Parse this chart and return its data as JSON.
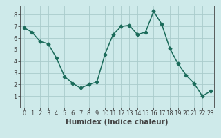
{
  "x": [
    0,
    1,
    2,
    3,
    4,
    5,
    6,
    7,
    8,
    9,
    10,
    11,
    12,
    13,
    14,
    15,
    16,
    17,
    18,
    19,
    20,
    21,
    22,
    23
  ],
  "y": [
    6.9,
    6.5,
    5.7,
    5.5,
    4.3,
    2.7,
    2.1,
    1.7,
    2.0,
    2.2,
    4.6,
    6.3,
    7.0,
    7.1,
    6.3,
    6.5,
    8.3,
    7.2,
    5.1,
    3.8,
    2.8,
    2.1,
    1.0,
    1.4
  ],
  "line_color": "#1a6b5a",
  "marker": "D",
  "marker_size": 2.5,
  "bg_color": "#ceeaea",
  "grid_color": "#aacccc",
  "xlabel": "Humidex (Indice chaleur)",
  "ylim": [
    0,
    8.8
  ],
  "xlim": [
    -0.5,
    23.5
  ],
  "yticks": [
    1,
    2,
    3,
    4,
    5,
    6,
    7,
    8
  ],
  "xticks": [
    0,
    1,
    2,
    3,
    4,
    5,
    6,
    7,
    8,
    9,
    10,
    11,
    12,
    13,
    14,
    15,
    16,
    17,
    18,
    19,
    20,
    21,
    22,
    23
  ],
  "axis_color": "#444444",
  "tick_fontsize": 6,
  "xlabel_fontsize": 7.5,
  "linewidth": 1.1
}
